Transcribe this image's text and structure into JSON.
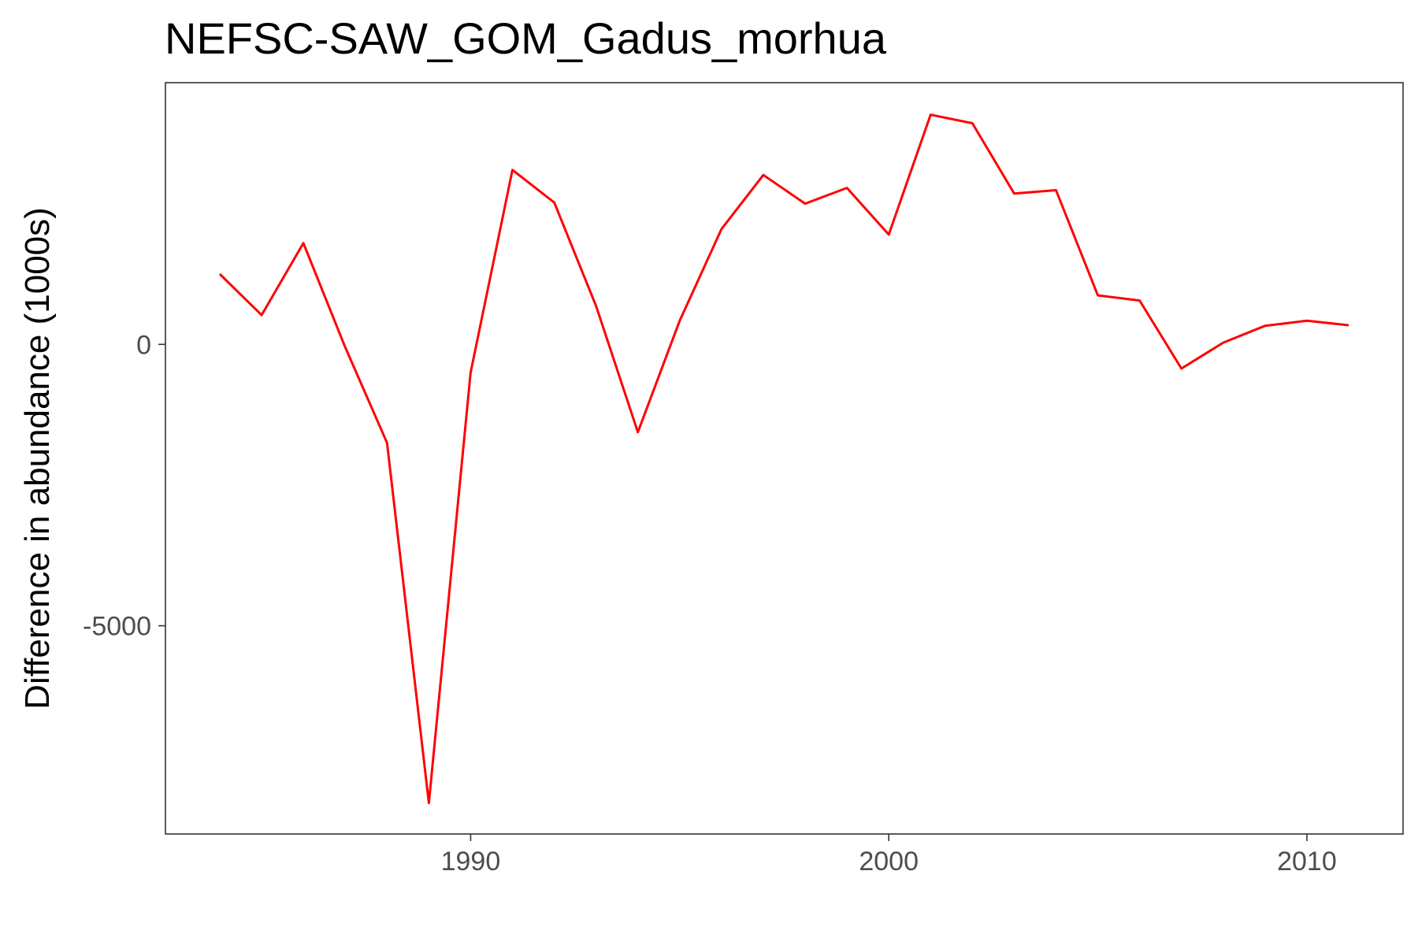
{
  "chart_data": {
    "type": "line",
    "title": "NEFSC-SAW_GOM_Gadus_morhua",
    "xlabel": "",
    "ylabel": "Difference in abundance (1000s)",
    "xlim": [
      1982.7,
      2012.3
    ],
    "ylim": [
      -8700,
      4650
    ],
    "x_ticks": [
      {
        "value": 1990,
        "label": "1990"
      },
      {
        "value": 2000,
        "label": "2000"
      },
      {
        "value": 2010,
        "label": "2010"
      }
    ],
    "y_ticks": [
      {
        "value": 0,
        "label": "0"
      },
      {
        "value": -5000,
        "label": "-5000"
      }
    ],
    "grid": false,
    "series": [
      {
        "color": "#ff0000",
        "x": [
          1984,
          1985,
          1986,
          1987,
          1988,
          1989,
          1990,
          1991,
          1992,
          1993,
          1994,
          1995,
          1996,
          1997,
          1998,
          1999,
          2000,
          2001,
          2002,
          2003,
          2004,
          2005,
          2006,
          2007,
          2008,
          2009,
          2010,
          2011
        ],
        "values": [
          1250,
          520,
          1800,
          -50,
          -1750,
          -8150,
          -500,
          3100,
          2520,
          680,
          -1560,
          420,
          2050,
          3010,
          2500,
          2780,
          1950,
          4080,
          3930,
          2680,
          2740,
          870,
          780,
          -430,
          30,
          330,
          420,
          340
        ]
      }
    ]
  }
}
